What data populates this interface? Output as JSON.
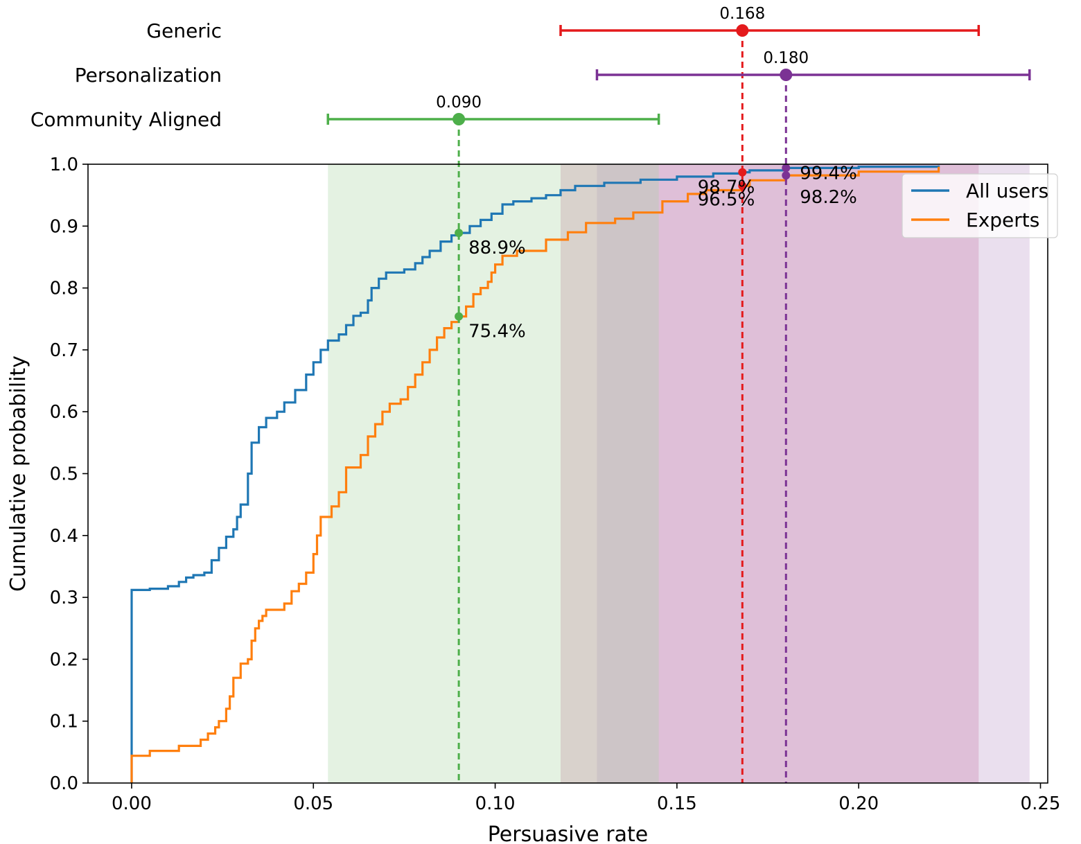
{
  "chart_data": {
    "type": "line",
    "xlabel": "Persuasive rate",
    "ylabel": "Cumulative probability",
    "xlim": [
      -0.012,
      0.252
    ],
    "ylim": [
      0.0,
      1.0
    ],
    "xticks": [
      "0.00",
      "0.05",
      "0.10",
      "0.15",
      "0.20",
      "0.25"
    ],
    "yticks": [
      "0.0",
      "0.1",
      "0.2",
      "0.3",
      "0.4",
      "0.5",
      "0.6",
      "0.7",
      "0.8",
      "0.9",
      "1.0"
    ],
    "grid": false,
    "legend": {
      "position": "top-right",
      "entries": [
        "All users",
        "Experts"
      ]
    },
    "series": [
      {
        "name": "All users",
        "color": "#1f77b4",
        "step": true,
        "points": [
          [
            0.0,
            0.0
          ],
          [
            0.0,
            0.312
          ],
          [
            0.005,
            0.314
          ],
          [
            0.01,
            0.318
          ],
          [
            0.013,
            0.325
          ],
          [
            0.015,
            0.332
          ],
          [
            0.017,
            0.336
          ],
          [
            0.02,
            0.34
          ],
          [
            0.022,
            0.36
          ],
          [
            0.024,
            0.38
          ],
          [
            0.026,
            0.398
          ],
          [
            0.028,
            0.41
          ],
          [
            0.029,
            0.43
          ],
          [
            0.03,
            0.45
          ],
          [
            0.032,
            0.5
          ],
          [
            0.033,
            0.55
          ],
          [
            0.035,
            0.575
          ],
          [
            0.037,
            0.59
          ],
          [
            0.04,
            0.6
          ],
          [
            0.042,
            0.615
          ],
          [
            0.045,
            0.635
          ],
          [
            0.048,
            0.66
          ],
          [
            0.05,
            0.68
          ],
          [
            0.052,
            0.7
          ],
          [
            0.054,
            0.715
          ],
          [
            0.057,
            0.725
          ],
          [
            0.059,
            0.74
          ],
          [
            0.061,
            0.755
          ],
          [
            0.063,
            0.76
          ],
          [
            0.065,
            0.78
          ],
          [
            0.066,
            0.8
          ],
          [
            0.068,
            0.815
          ],
          [
            0.07,
            0.825
          ],
          [
            0.075,
            0.83
          ],
          [
            0.078,
            0.84
          ],
          [
            0.08,
            0.85
          ],
          [
            0.082,
            0.86
          ],
          [
            0.085,
            0.875
          ],
          [
            0.088,
            0.885
          ],
          [
            0.09,
            0.889
          ],
          [
            0.093,
            0.9
          ],
          [
            0.096,
            0.91
          ],
          [
            0.099,
            0.92
          ],
          [
            0.102,
            0.935
          ],
          [
            0.105,
            0.94
          ],
          [
            0.11,
            0.945
          ],
          [
            0.114,
            0.95
          ],
          [
            0.118,
            0.958
          ],
          [
            0.122,
            0.965
          ],
          [
            0.13,
            0.97
          ],
          [
            0.14,
            0.975
          ],
          [
            0.15,
            0.98
          ],
          [
            0.16,
            0.985
          ],
          [
            0.168,
            0.987
          ],
          [
            0.17,
            0.99
          ],
          [
            0.18,
            0.994
          ],
          [
            0.2,
            0.996
          ],
          [
            0.222,
            0.998
          ]
        ]
      },
      {
        "name": "Experts",
        "color": "#ff7f0e",
        "step": true,
        "points": [
          [
            0.0,
            0.0
          ],
          [
            0.0,
            0.044
          ],
          [
            0.005,
            0.052
          ],
          [
            0.013,
            0.06
          ],
          [
            0.019,
            0.07
          ],
          [
            0.021,
            0.08
          ],
          [
            0.023,
            0.09
          ],
          [
            0.024,
            0.1
          ],
          [
            0.026,
            0.12
          ],
          [
            0.027,
            0.14
          ],
          [
            0.028,
            0.17
          ],
          [
            0.03,
            0.193
          ],
          [
            0.032,
            0.2
          ],
          [
            0.033,
            0.23
          ],
          [
            0.034,
            0.25
          ],
          [
            0.035,
            0.262
          ],
          [
            0.036,
            0.27
          ],
          [
            0.037,
            0.28
          ],
          [
            0.042,
            0.29
          ],
          [
            0.044,
            0.31
          ],
          [
            0.046,
            0.322
          ],
          [
            0.048,
            0.34
          ],
          [
            0.05,
            0.37
          ],
          [
            0.051,
            0.4
          ],
          [
            0.052,
            0.43
          ],
          [
            0.055,
            0.447
          ],
          [
            0.057,
            0.47
          ],
          [
            0.059,
            0.51
          ],
          [
            0.063,
            0.53
          ],
          [
            0.065,
            0.56
          ],
          [
            0.067,
            0.58
          ],
          [
            0.069,
            0.6
          ],
          [
            0.071,
            0.613
          ],
          [
            0.074,
            0.62
          ],
          [
            0.076,
            0.64
          ],
          [
            0.078,
            0.66
          ],
          [
            0.08,
            0.68
          ],
          [
            0.082,
            0.7
          ],
          [
            0.084,
            0.72
          ],
          [
            0.086,
            0.735
          ],
          [
            0.088,
            0.745
          ],
          [
            0.09,
            0.754
          ],
          [
            0.092,
            0.77
          ],
          [
            0.094,
            0.79
          ],
          [
            0.096,
            0.8
          ],
          [
            0.098,
            0.81
          ],
          [
            0.099,
            0.825
          ],
          [
            0.1,
            0.838
          ],
          [
            0.102,
            0.852
          ],
          [
            0.106,
            0.86
          ],
          [
            0.114,
            0.878
          ],
          [
            0.12,
            0.89
          ],
          [
            0.125,
            0.905
          ],
          [
            0.133,
            0.912
          ],
          [
            0.138,
            0.922
          ],
          [
            0.146,
            0.94
          ],
          [
            0.153,
            0.952
          ],
          [
            0.158,
            0.958
          ],
          [
            0.168,
            0.965
          ],
          [
            0.17,
            0.974
          ],
          [
            0.18,
            0.982
          ],
          [
            0.2,
            0.988
          ],
          [
            0.222,
            0.996
          ]
        ]
      }
    ],
    "intervals": [
      {
        "name": "Generic",
        "color": "#e41a1c",
        "estimate": 0.168,
        "estimate_label": "0.168",
        "low": 0.118,
        "high": 0.233,
        "band_color": "#cc6699"
      },
      {
        "name": "Personalization",
        "color": "#7b3294",
        "estimate": 0.18,
        "estimate_label": "0.180",
        "low": 0.128,
        "high": 0.247,
        "band_color": "#b894c8"
      },
      {
        "name": "Community Aligned",
        "color": "#4daf4a",
        "estimate": 0.09,
        "estimate_label": "0.090",
        "low": 0.054,
        "high": 0.145,
        "band_color": "#a6d5a0"
      }
    ],
    "annotations": [
      {
        "x": 0.09,
        "y": 0.889,
        "label": "88.9%",
        "color": "#4daf4a",
        "offset": "below-right"
      },
      {
        "x": 0.09,
        "y": 0.754,
        "label": "75.4%",
        "color": "#4daf4a",
        "offset": "below-right"
      },
      {
        "x": 0.168,
        "y": 0.987,
        "label": "98.7%",
        "color": "#e41a1c",
        "offset": "left"
      },
      {
        "x": 0.168,
        "y": 0.965,
        "label": "96.5%",
        "color": "#e41a1c",
        "offset": "left"
      },
      {
        "x": 0.18,
        "y": 0.994,
        "label": "99.4%",
        "color": "#7b3294",
        "offset": "right"
      },
      {
        "x": 0.18,
        "y": 0.982,
        "label": "98.2%",
        "color": "#7b3294",
        "offset": "right"
      }
    ]
  }
}
